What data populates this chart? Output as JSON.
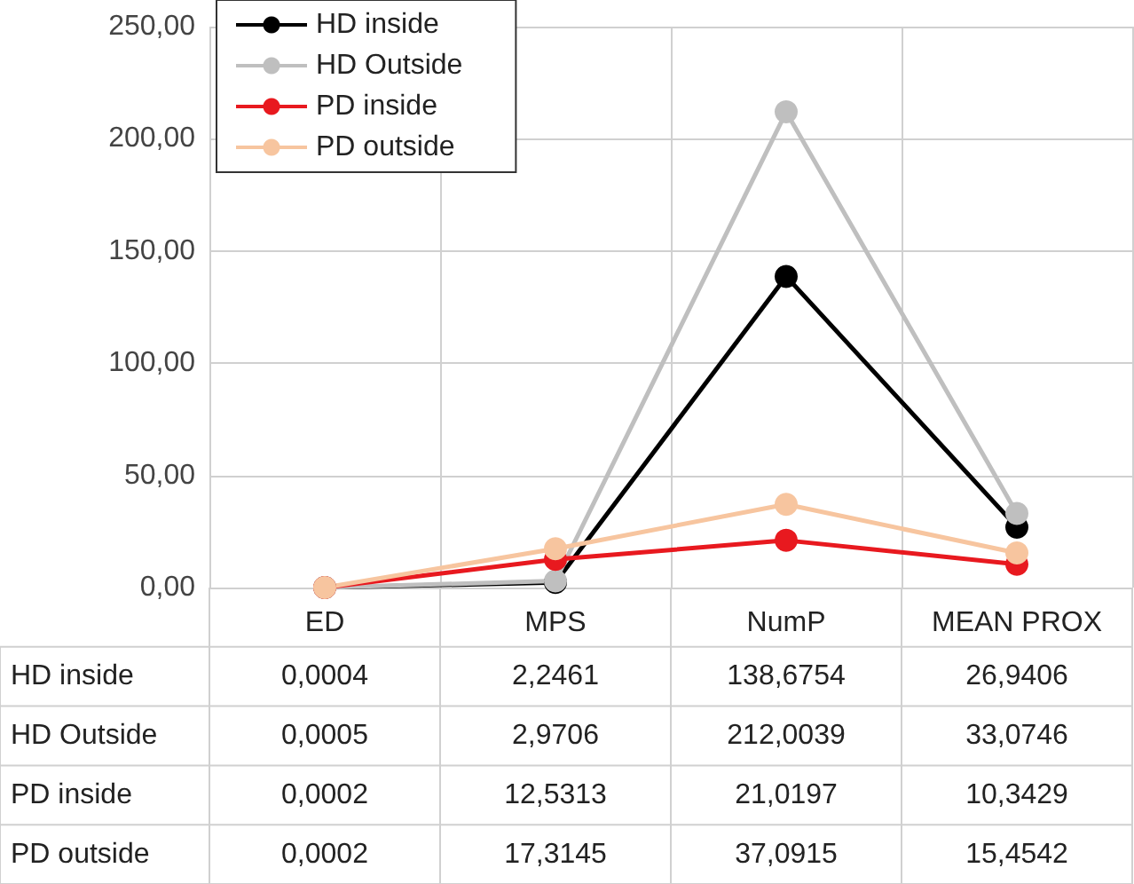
{
  "chart_data": {
    "type": "line",
    "categories": [
      "ED",
      "MPS",
      "NumP",
      "MEAN PROX"
    ],
    "series": [
      {
        "name": "HD inside",
        "color": "#000000",
        "values": [
          0.0004,
          2.2461,
          138.6754,
          26.9406
        ],
        "value_labels": [
          "0,0004",
          "2,2461",
          "138,6754",
          "26,9406"
        ]
      },
      {
        "name": "HD Outside",
        "color": "#bfbfbf",
        "values": [
          0.0005,
          2.9706,
          212.0039,
          33.0746
        ],
        "value_labels": [
          "0,0005",
          "2,9706",
          "212,0039",
          "33,0746"
        ]
      },
      {
        "name": "PD inside",
        "color": "#e8191f",
        "values": [
          0.0002,
          12.5313,
          21.0197,
          10.3429
        ],
        "value_labels": [
          "0,0002",
          "12,5313",
          "21,0197",
          "10,3429"
        ]
      },
      {
        "name": "PD outside",
        "color": "#f7c59f",
        "values": [
          0.0002,
          17.3145,
          37.0915,
          15.4542
        ],
        "value_labels": [
          "0,0002",
          "17,3145",
          "37,0915",
          "15,4542"
        ]
      }
    ],
    "ylim": [
      0,
      250
    ],
    "yticks": [
      {
        "value": 0,
        "label": "0,00"
      },
      {
        "value": 50,
        "label": "50,00"
      },
      {
        "value": 100,
        "label": "100,00"
      },
      {
        "value": 150,
        "label": "150,00"
      },
      {
        "value": 200,
        "label": "200,00"
      },
      {
        "value": 250,
        "label": "250,00"
      }
    ],
    "grid": true,
    "legend": "top left",
    "marker": "circle",
    "line_style": "solid"
  }
}
